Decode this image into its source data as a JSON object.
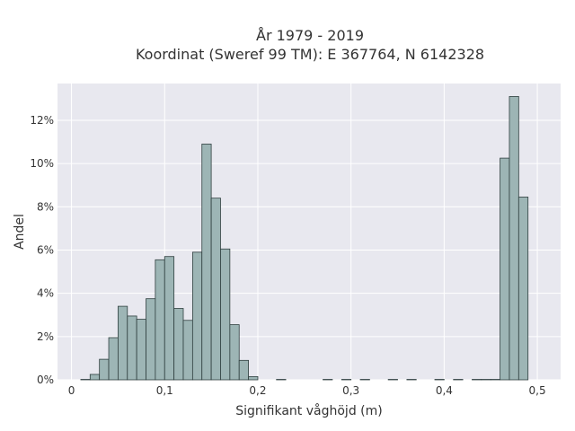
{
  "chart_data": {
    "type": "bar",
    "title": "År 1979 - 2019",
    "subtitle": "Koordinat (Sweref 99 TM): E 367764, N 6142328",
    "xlabel": "Signifikant våghöjd (m)",
    "ylabel": "Andel",
    "xlim": [
      -0.015,
      0.525
    ],
    "ylim": [
      0,
      13.7
    ],
    "bin_width": 0.01,
    "x_ticks": [
      {
        "value": 0,
        "label": "0"
      },
      {
        "value": 0.1,
        "label": "0,1"
      },
      {
        "value": 0.2,
        "label": "0,2"
      },
      {
        "value": 0.3,
        "label": "0,3"
      },
      {
        "value": 0.4,
        "label": "0,4"
      },
      {
        "value": 0.5,
        "label": "0,5"
      }
    ],
    "y_ticks": [
      {
        "value": 0,
        "label": "0%"
      },
      {
        "value": 2,
        "label": "2%"
      },
      {
        "value": 4,
        "label": "4%"
      },
      {
        "value": 6,
        "label": "6%"
      },
      {
        "value": 8,
        "label": "8%"
      },
      {
        "value": 10,
        "label": "10%"
      },
      {
        "value": 12,
        "label": "12%"
      }
    ],
    "grid": true,
    "bins": [
      {
        "x0": 0.01,
        "value": 0.02
      },
      {
        "x0": 0.02,
        "value": 0.25
      },
      {
        "x0": 0.03,
        "value": 0.95
      },
      {
        "x0": 0.04,
        "value": 1.95
      },
      {
        "x0": 0.05,
        "value": 3.4
      },
      {
        "x0": 0.06,
        "value": 2.95
      },
      {
        "x0": 0.07,
        "value": 2.8
      },
      {
        "x0": 0.08,
        "value": 3.75
      },
      {
        "x0": 0.09,
        "value": 5.55
      },
      {
        "x0": 0.1,
        "value": 5.7
      },
      {
        "x0": 0.11,
        "value": 3.3
      },
      {
        "x0": 0.12,
        "value": 2.75
      },
      {
        "x0": 0.13,
        "value": 5.9
      },
      {
        "x0": 0.14,
        "value": 10.9
      },
      {
        "x0": 0.15,
        "value": 8.4
      },
      {
        "x0": 0.16,
        "value": 6.05
      },
      {
        "x0": 0.17,
        "value": 2.55
      },
      {
        "x0": 0.18,
        "value": 0.9
      },
      {
        "x0": 0.19,
        "value": 0.15
      },
      {
        "x0": 0.22,
        "value": 0.02
      },
      {
        "x0": 0.27,
        "value": 0.02
      },
      {
        "x0": 0.29,
        "value": 0.02
      },
      {
        "x0": 0.31,
        "value": 0.02
      },
      {
        "x0": 0.34,
        "value": 0.02
      },
      {
        "x0": 0.36,
        "value": 0.02
      },
      {
        "x0": 0.39,
        "value": 0.02
      },
      {
        "x0": 0.41,
        "value": 0.02
      },
      {
        "x0": 0.43,
        "value": 0.02
      },
      {
        "x0": 0.44,
        "value": 0.02
      },
      {
        "x0": 0.45,
        "value": 0.02
      },
      {
        "x0": 0.46,
        "value": 10.25
      },
      {
        "x0": 0.47,
        "value": 13.1
      },
      {
        "x0": 0.48,
        "value": 8.45
      }
    ],
    "colors": {
      "bar_fill": "#9db5b5",
      "bar_stroke": "#2f3f3f",
      "plot_background": "#e8e8ef",
      "grid": "#ffffff"
    }
  }
}
